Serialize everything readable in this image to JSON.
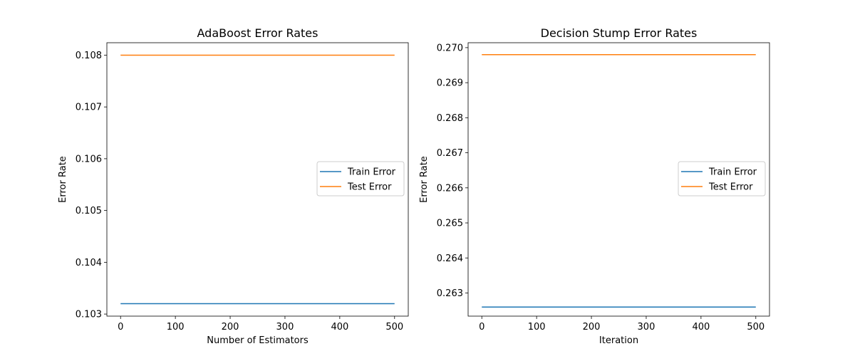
{
  "chart_data": [
    {
      "type": "line",
      "title": "AdaBoost Error Rates",
      "xlabel": "Number of Estimators",
      "ylabel": "Error Rate",
      "xlim": [
        -25,
        525
      ],
      "ylim": [
        0.10296,
        0.10824
      ],
      "xticks": [
        0,
        100,
        200,
        300,
        400,
        500
      ],
      "yticks": [
        0.103,
        0.104,
        0.105,
        0.106,
        0.107,
        0.108
      ],
      "ytick_labels": [
        "0.103",
        "0.104",
        "0.105",
        "0.106",
        "0.107",
        "0.108"
      ],
      "legend_position": "center-right",
      "series": [
        {
          "name": "Train Error",
          "color": "#1f77b4",
          "x": [
            0,
            500
          ],
          "y": [
            0.1032,
            0.1032
          ]
        },
        {
          "name": "Test Error",
          "color": "#ff7f0e",
          "x": [
            0,
            500
          ],
          "y": [
            0.108,
            0.108
          ]
        }
      ]
    },
    {
      "type": "line",
      "title": "Decision Stump Error Rates",
      "xlabel": "Iteration",
      "ylabel": "Error Rate",
      "xlim": [
        -25,
        525
      ],
      "ylim": [
        0.26234,
        0.27014
      ],
      "xticks": [
        0,
        100,
        200,
        300,
        400,
        500
      ],
      "yticks": [
        0.263,
        0.264,
        0.265,
        0.266,
        0.267,
        0.268,
        0.269,
        0.27
      ],
      "ytick_labels": [
        "0.263",
        "0.264",
        "0.265",
        "0.266",
        "0.267",
        "0.268",
        "0.269",
        "0.270"
      ],
      "legend_position": "center-right",
      "series": [
        {
          "name": "Train Error",
          "color": "#1f77b4",
          "x": [
            0,
            500
          ],
          "y": [
            0.2626,
            0.2626
          ]
        },
        {
          "name": "Test Error",
          "color": "#ff7f0e",
          "x": [
            0,
            500
          ],
          "y": [
            0.2698,
            0.2698
          ]
        }
      ]
    }
  ]
}
